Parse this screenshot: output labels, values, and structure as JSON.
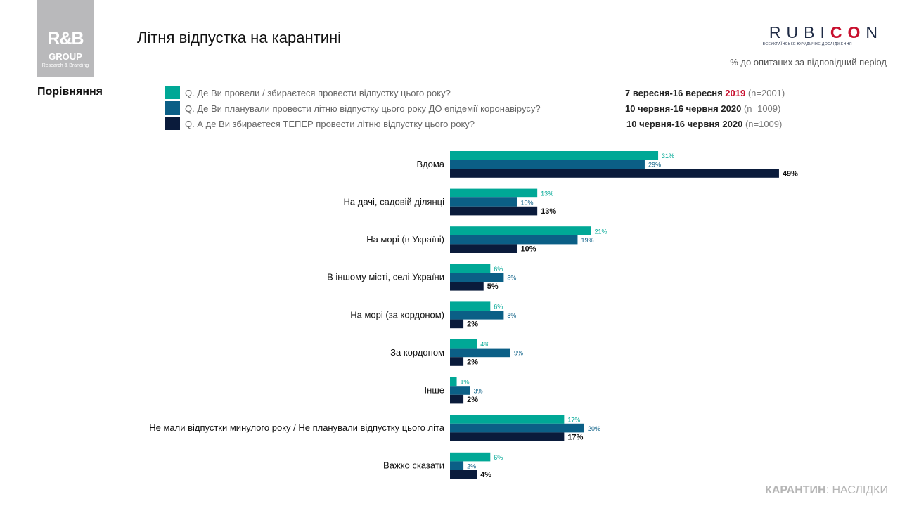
{
  "header": {
    "logo": {
      "main": "R&B",
      "sub": "GROUP",
      "tagline": "Research & Branding"
    },
    "title": "Літня відпустка на карантині",
    "brand": {
      "prefix": "RUBI",
      "accent": "CO",
      "suffix": "N",
      "tagline": "ВСЕУКРАЇНСЬКЕ ЮРИДИЧНЕ ДОСЛІДЖЕННЯ"
    },
    "subtitle": "% до опитаних за відповідний період"
  },
  "section_label": "Порівняння",
  "legend": [
    {
      "question": "Q. Де Ви провели / збираєтеся провести відпустку цього року?",
      "period_main": "7 вересня-16 вересня ",
      "period_year": "2019",
      "period_year_red": true,
      "sample": "(n=2001)"
    },
    {
      "question": "Q. Де Ви планували провести літню відпустку цього року ДО епідемії коронавірусу?",
      "period_main": "10 червня-16 червня ",
      "period_year": "2020",
      "period_year_red": false,
      "sample": "(n=1009)"
    },
    {
      "question": "Q. А де Ви збираєтеся ТЕПЕР провести літню відпустку цього року?",
      "period_main": "10 червня-16 червня ",
      "period_year": "2020",
      "period_year_red": false,
      "sample": "(n=1009)"
    }
  ],
  "chart_data": {
    "type": "bar",
    "orientation": "horizontal",
    "categories": [
      "Вдома",
      "На дачі, садовій ділянці",
      "На морі (в Україні)",
      "В іншому місті, селі України",
      "На морі (за кордоном)",
      "За кордоном",
      "Інше",
      "Не мали відпустки минулого року / Не планували відпустку цього літа",
      "Важко сказати"
    ],
    "series": [
      {
        "values": [
          31,
          13,
          21,
          6,
          6,
          4,
          1,
          17,
          6
        ],
        "color": "#00a896"
      },
      {
        "values": [
          29,
          10,
          19,
          8,
          8,
          9,
          3,
          20,
          2
        ],
        "color": "#0b5f86"
      },
      {
        "values": [
          49,
          13,
          10,
          5,
          2,
          2,
          2,
          17,
          4
        ],
        "color": "#0a1b3b"
      }
    ],
    "value_suffix": "%",
    "xlim": [
      0,
      100
    ],
    "grid": false,
    "legend_position": "top"
  },
  "footer": {
    "strong": "КАРАНТИН",
    "rest": ": НАСЛІДКИ"
  }
}
